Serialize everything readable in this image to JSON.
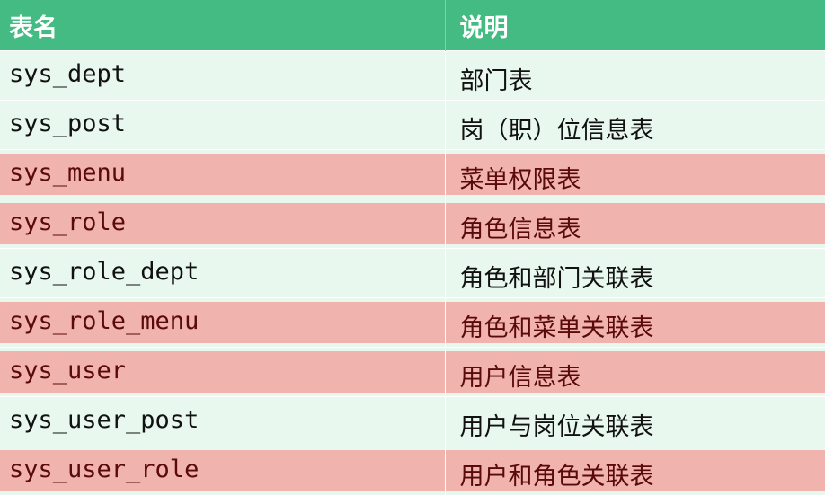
{
  "header": {
    "col1": "表名",
    "col2": "说明"
  },
  "colors": {
    "header": "#43bb82",
    "row": "#e8f8ee",
    "highlight": "#f0b3ae"
  },
  "rows": [
    {
      "name": "sys_dept",
      "desc": "部门表",
      "highlighted": false
    },
    {
      "name": "sys_post",
      "desc": "岗（职）位信息表",
      "highlighted": false
    },
    {
      "name": "sys_menu",
      "desc": "菜单权限表",
      "highlighted": true
    },
    {
      "name": "sys_role",
      "desc": "角色信息表",
      "highlighted": true
    },
    {
      "name": "sys_role_dept",
      "desc": "角色和部门关联表",
      "highlighted": false
    },
    {
      "name": "sys_role_menu",
      "desc": "角色和菜单关联表",
      "highlighted": true
    },
    {
      "name": "sys_user",
      "desc": "用户信息表",
      "highlighted": true
    },
    {
      "name": "sys_user_post",
      "desc": "用户与岗位关联表",
      "highlighted": false
    },
    {
      "name": "sys_user_role",
      "desc": "用户和角色关联表",
      "highlighted": true
    }
  ]
}
